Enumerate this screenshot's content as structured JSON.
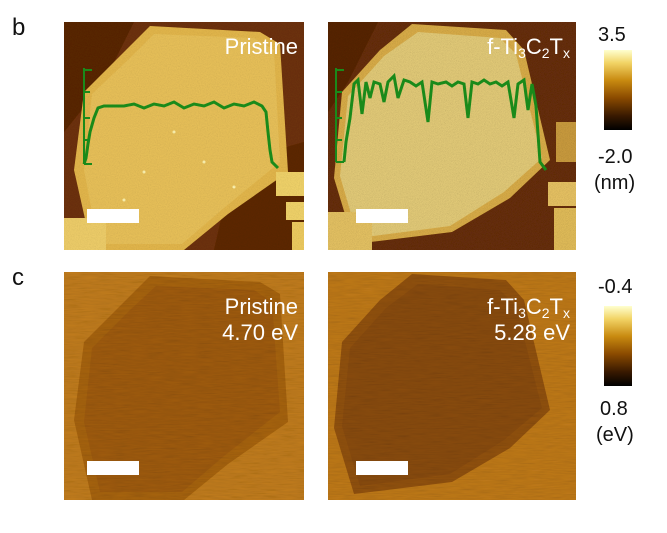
{
  "panel_b": {
    "letter": "b",
    "left_image": {
      "caption": "Pristine"
    },
    "right_image": {
      "caption_base": "f-Ti",
      "caption_sub1": "3",
      "caption_mid": "C",
      "caption_sub2": "2",
      "caption_end": "T",
      "caption_sub3": "x"
    },
    "colorbar": {
      "max_label": "3.5",
      "min_label": "-2.0",
      "unit_label": "(nm)",
      "colors": [
        "#000000",
        "#3a1a00",
        "#8a4a00",
        "#c88a10",
        "#f2d466",
        "#ffffcf"
      ]
    },
    "line_profile_color": "#1a8a1a"
  },
  "panel_c": {
    "letter": "c",
    "left_image": {
      "caption_line1": "Pristine",
      "caption_line2": "4.70 eV"
    },
    "right_image": {
      "caption_base": "f-Ti",
      "caption_sub1": "3",
      "caption_mid": "C",
      "caption_sub2": "2",
      "caption_end": "T",
      "caption_sub3": "x",
      "caption_line2": "5.28 eV"
    },
    "colorbar": {
      "max_label": "-0.4",
      "min_label": "0.8",
      "unit_label": "(eV)",
      "colors": [
        "#000000",
        "#3a1a00",
        "#8a4a00",
        "#c88a10",
        "#f2d466",
        "#ffffcf"
      ]
    }
  }
}
